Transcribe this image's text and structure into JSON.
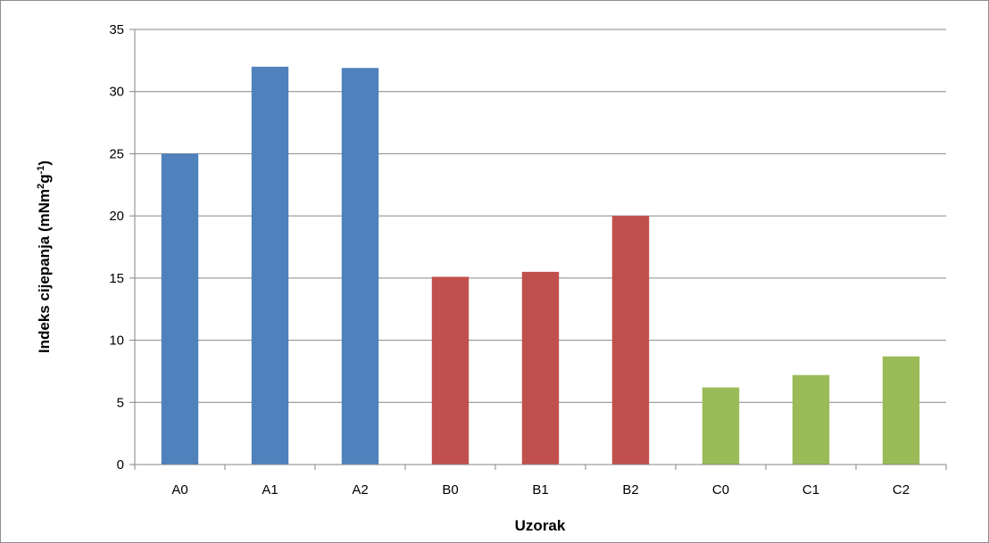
{
  "chart_data": {
    "type": "bar",
    "categories": [
      "A0",
      "A1",
      "A2",
      "B0",
      "B1",
      "B2",
      "C0",
      "C1",
      "C2"
    ],
    "values": [
      25.0,
      32.0,
      31.9,
      15.1,
      15.5,
      20.0,
      6.2,
      7.2,
      8.7
    ],
    "colors": [
      "#4f81bd",
      "#4f81bd",
      "#4f81bd",
      "#c0504d",
      "#c0504d",
      "#c0504d",
      "#9bbb59",
      "#9bbb59",
      "#9bbb59"
    ],
    "ylim": [
      0,
      35
    ],
    "yticks": [
      0,
      5,
      10,
      15,
      20,
      25,
      30,
      35
    ],
    "xlabel": "Uzorak",
    "ylabel_main": "Indeks cijepanja (mNm",
    "ylabel_sup1": "2",
    "ylabel_mid": "g",
    "ylabel_sup2": "-1",
    "ylabel_end": ")",
    "grid": true,
    "legend": "none"
  }
}
